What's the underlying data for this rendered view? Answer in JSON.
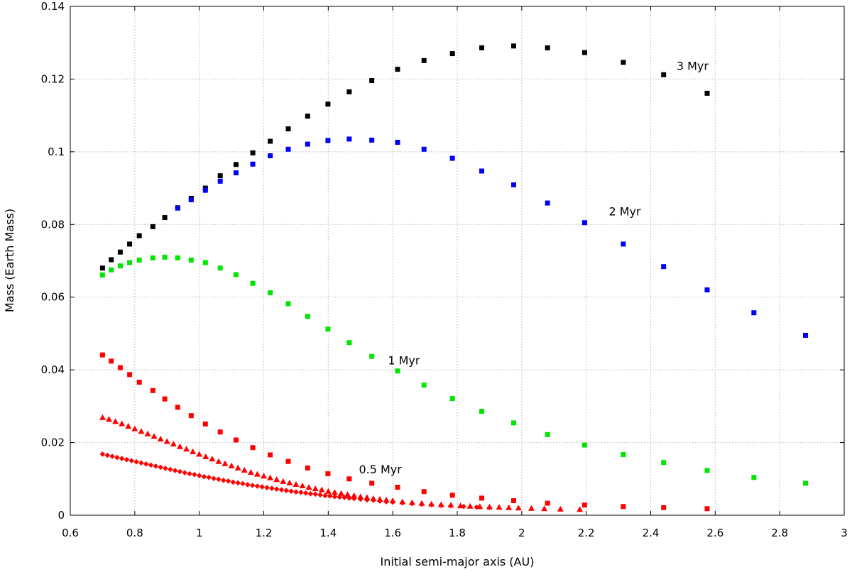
{
  "chart_data": {
    "type": "scatter",
    "title": "",
    "xlabel": "Initial semi-major axis (AU)",
    "ylabel": "Mass (Earth Mass)",
    "xlim": [
      0.6,
      3.0
    ],
    "ylim": [
      0,
      0.14
    ],
    "xticks": [
      0.6,
      0.8,
      1.0,
      1.2,
      1.4,
      1.6,
      1.8,
      2.0,
      2.2,
      2.4,
      2.6,
      2.8,
      3.0
    ],
    "xtick_labels": [
      "0.6",
      "0.8",
      "1",
      "1.2",
      "1.4",
      "1.6",
      "1.8",
      "2",
      "2.2",
      "2.4",
      "2.6",
      "2.8",
      "3"
    ],
    "yticks": [
      0,
      0.02,
      0.04,
      0.06,
      0.08,
      0.1,
      0.12,
      0.14
    ],
    "ytick_labels": [
      "0",
      "0.02",
      "0.04",
      "0.06",
      "0.08",
      "0.1",
      "0.12",
      "0.14"
    ],
    "grid": true,
    "series": [
      {
        "color": "#000000",
        "marker": "square",
        "x": [
          0.7,
          0.727,
          0.755,
          0.784,
          0.814,
          0.856,
          0.893,
          0.933,
          0.975,
          1.019,
          1.065,
          1.114,
          1.166,
          1.22,
          1.276,
          1.336,
          1.399,
          1.465,
          1.535,
          1.615,
          1.697,
          1.785,
          1.876,
          1.975,
          2.08,
          2.195,
          2.315,
          2.44,
          2.575
        ],
        "y": [
          0.068,
          0.0703,
          0.0724,
          0.0746,
          0.0769,
          0.0794,
          0.0819,
          0.0846,
          0.0872,
          0.09,
          0.0934,
          0.0965,
          0.0997,
          0.1029,
          0.1063,
          0.1098,
          0.1131,
          0.1165,
          0.1196,
          0.1227,
          0.1251,
          0.127,
          0.1286,
          0.1291,
          0.1286,
          0.1273,
          0.1246,
          0.1212,
          0.1161
        ]
      },
      {
        "color": "#0000ff",
        "marker": "square",
        "x": [
          0.933,
          0.975,
          1.019,
          1.065,
          1.114,
          1.166,
          1.22,
          1.276,
          1.336,
          1.399,
          1.465,
          1.535,
          1.615,
          1.697,
          1.785,
          1.876,
          1.975,
          2.08,
          2.195,
          2.315,
          2.44,
          2.575,
          2.72,
          2.88
        ],
        "y": [
          0.0845,
          0.0868,
          0.0894,
          0.0919,
          0.0942,
          0.0966,
          0.0989,
          0.1007,
          0.1021,
          0.1031,
          0.1035,
          0.1032,
          0.1026,
          0.1007,
          0.0982,
          0.0947,
          0.0909,
          0.0859,
          0.0805,
          0.0746,
          0.0684,
          0.062,
          0.0557,
          0.0495
        ]
      },
      {
        "color": "#00e600",
        "marker": "square",
        "x": [
          0.7,
          0.727,
          0.755,
          0.784,
          0.814,
          0.856,
          0.893,
          0.933,
          0.975,
          1.019,
          1.065,
          1.114,
          1.166,
          1.22,
          1.276,
          1.336,
          1.399,
          1.465,
          1.535,
          1.615,
          1.697,
          1.785,
          1.876,
          1.975,
          2.08,
          2.195,
          2.315,
          2.44,
          2.575,
          2.72,
          2.88
        ],
        "y": [
          0.0661,
          0.0675,
          0.0686,
          0.0695,
          0.0702,
          0.0708,
          0.071,
          0.0708,
          0.0702,
          0.0695,
          0.068,
          0.0662,
          0.0638,
          0.0612,
          0.0582,
          0.0547,
          0.0512,
          0.0475,
          0.0437,
          0.0397,
          0.0358,
          0.0321,
          0.0286,
          0.0254,
          0.0222,
          0.0193,
          0.0167,
          0.0145,
          0.0123,
          0.0104,
          0.0088
        ]
      },
      {
        "color": "#ff0000",
        "marker": "square",
        "x": [
          0.7,
          0.727,
          0.755,
          0.784,
          0.814,
          0.856,
          0.893,
          0.933,
          0.975,
          1.019,
          1.065,
          1.114,
          1.166,
          1.22,
          1.276,
          1.336,
          1.399,
          1.465,
          1.535,
          1.615,
          1.697,
          1.785,
          1.876,
          1.975,
          2.08,
          2.195,
          2.315,
          2.44,
          2.575
        ],
        "y": [
          0.0441,
          0.0424,
          0.0406,
          0.0387,
          0.0366,
          0.0343,
          0.032,
          0.0297,
          0.0274,
          0.0251,
          0.0229,
          0.0207,
          0.0186,
          0.0166,
          0.0148,
          0.013,
          0.0114,
          0.01,
          0.0088,
          0.0077,
          0.0065,
          0.0055,
          0.0047,
          0.004,
          0.0033,
          0.0028,
          0.0024,
          0.0021,
          0.0018
        ]
      },
      {
        "color": "#ff0000",
        "marker": "triangle",
        "x": [
          0.7,
          0.72,
          0.74,
          0.76,
          0.78,
          0.8,
          0.82,
          0.84,
          0.86,
          0.88,
          0.9,
          0.92,
          0.94,
          0.96,
          0.98,
          1.0,
          1.02,
          1.04,
          1.06,
          1.08,
          1.1,
          1.12,
          1.14,
          1.16,
          1.18,
          1.2,
          1.22,
          1.24,
          1.26,
          1.28,
          1.3,
          1.32,
          1.34,
          1.36,
          1.38,
          1.4,
          1.42,
          1.44,
          1.46,
          1.48,
          1.5,
          1.52,
          1.54,
          1.56,
          1.58,
          1.6,
          1.63,
          1.66,
          1.69,
          1.72,
          1.75,
          1.78,
          1.81,
          1.84,
          1.87,
          1.9,
          1.93,
          1.96,
          1.99,
          2.03,
          2.07,
          2.12,
          2.18
        ],
        "y": [
          0.0269,
          0.0264,
          0.0258,
          0.0252,
          0.0245,
          0.0238,
          0.0231,
          0.0224,
          0.0217,
          0.021,
          0.0203,
          0.0196,
          0.0189,
          0.0182,
          0.0175,
          0.0168,
          0.0161,
          0.0155,
          0.0148,
          0.0142,
          0.0136,
          0.013,
          0.0124,
          0.0118,
          0.0113,
          0.0108,
          0.0103,
          0.0098,
          0.0093,
          0.0089,
          0.0085,
          0.0081,
          0.0077,
          0.0073,
          0.007,
          0.0066,
          0.0063,
          0.006,
          0.0057,
          0.0054,
          0.0051,
          0.0049,
          0.0046,
          0.0044,
          0.0042,
          0.004,
          0.0037,
          0.0035,
          0.0033,
          0.0031,
          0.0029,
          0.0028,
          0.0026,
          0.0025,
          0.0024,
          0.0023,
          0.0022,
          0.0021,
          0.002,
          0.0019,
          0.0018,
          0.0017,
          0.0016
        ]
      },
      {
        "color": "#ff0000",
        "marker": "diamond",
        "x": [
          0.7,
          0.715,
          0.73,
          0.745,
          0.76,
          0.775,
          0.79,
          0.805,
          0.82,
          0.835,
          0.85,
          0.865,
          0.88,
          0.895,
          0.91,
          0.925,
          0.94,
          0.955,
          0.97,
          0.985,
          1.0,
          1.015,
          1.03,
          1.045,
          1.06,
          1.075,
          1.09,
          1.105,
          1.12,
          1.135,
          1.15,
          1.165,
          1.18,
          1.195,
          1.21,
          1.225,
          1.24,
          1.255,
          1.27,
          1.285,
          1.3,
          1.315,
          1.33,
          1.345,
          1.36,
          1.375,
          1.39,
          1.405,
          1.42,
          1.435,
          1.45,
          1.465,
          1.48,
          1.5,
          1.52,
          1.54,
          1.56,
          1.58,
          1.6,
          1.63,
          1.66,
          1.69,
          1.72,
          1.75,
          1.78,
          1.82,
          1.86,
          1.9
        ],
        "y": [
          0.0168,
          0.0165,
          0.0162,
          0.0159,
          0.0156,
          0.0153,
          0.015,
          0.0147,
          0.0144,
          0.0141,
          0.0138,
          0.0135,
          0.0132,
          0.0129,
          0.0126,
          0.0123,
          0.012,
          0.0117,
          0.0114,
          0.0112,
          0.0109,
          0.0106,
          0.0104,
          0.0101,
          0.0099,
          0.0096,
          0.0094,
          0.0091,
          0.0089,
          0.0087,
          0.0084,
          0.0082,
          0.008,
          0.0078,
          0.0076,
          0.0074,
          0.0072,
          0.007,
          0.0068,
          0.0066,
          0.0064,
          0.0063,
          0.0061,
          0.0059,
          0.0058,
          0.0056,
          0.0054,
          0.0053,
          0.0051,
          0.005,
          0.0049,
          0.0047,
          0.0046,
          0.0044,
          0.0042,
          0.0041,
          0.0039,
          0.0037,
          0.0036,
          0.0034,
          0.0032,
          0.003,
          0.0029,
          0.0027,
          0.0026,
          0.0024,
          0.0022,
          0.0021
        ]
      }
    ],
    "annotations": [
      {
        "text": "3 Myr",
        "x": 2.48,
        "y": 0.1225
      },
      {
        "text": "2 Myr",
        "x": 2.27,
        "y": 0.0825
      },
      {
        "text": "1 Myr",
        "x": 1.585,
        "y": 0.0415
      },
      {
        "text": "0.5 Myr",
        "x": 1.495,
        "y": 0.0115
      }
    ]
  }
}
